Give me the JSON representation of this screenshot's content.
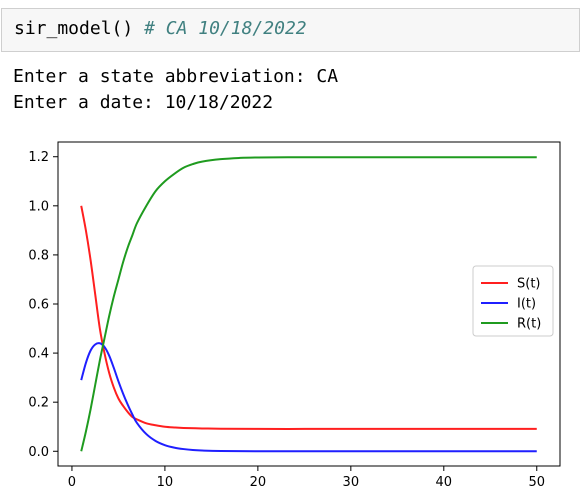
{
  "notebook": {
    "input_code": "sir_model()",
    "input_comment": "# CA 10/18/2022",
    "output_lines": [
      "Enter a state abbreviation: CA",
      "Enter a date: 10/18/2022"
    ]
  },
  "colors": {
    "S": "#ff1f1f",
    "I": "#1f1fff",
    "R": "#1f9b1f"
  },
  "chart_data": {
    "type": "line",
    "title": "",
    "xlabel": "",
    "ylabel": "",
    "xlim": [
      -1.5,
      52.5
    ],
    "ylim": [
      -0.06,
      1.26
    ],
    "xticks": [
      0,
      10,
      20,
      30,
      40,
      50
    ],
    "yticks": [
      0.0,
      0.2,
      0.4,
      0.6,
      0.8,
      1.0,
      1.2
    ],
    "ytick_labels": [
      "0.0",
      "0.2",
      "0.4",
      "0.6",
      "0.8",
      "1.0",
      "1.2"
    ],
    "grid": false,
    "legend": "center-right",
    "series": [
      {
        "name": "S(t)",
        "color": "#ff1f1f",
        "x": [
          1,
          1.5,
          2,
          2.5,
          3,
          3.5,
          4,
          4.5,
          5,
          5.5,
          6,
          6.5,
          7,
          8,
          9,
          10,
          11,
          12,
          14,
          16,
          20,
          25,
          30,
          40,
          50
        ],
        "y": [
          1.0,
          0.9,
          0.78,
          0.64,
          0.5,
          0.4,
          0.32,
          0.26,
          0.215,
          0.185,
          0.16,
          0.14,
          0.13,
          0.114,
          0.106,
          0.1,
          0.097,
          0.095,
          0.093,
          0.092,
          0.091,
          0.091,
          0.091,
          0.091,
          0.091
        ]
      },
      {
        "name": "I(t)",
        "color": "#1f1fff",
        "x": [
          1,
          1.5,
          2,
          2.5,
          3,
          3.5,
          4,
          4.5,
          5,
          5.5,
          6,
          6.5,
          7,
          8,
          9,
          10,
          11,
          12,
          13,
          14,
          16,
          20,
          25,
          30,
          40,
          50
        ],
        "y": [
          0.29,
          0.36,
          0.41,
          0.435,
          0.44,
          0.425,
          0.39,
          0.34,
          0.285,
          0.235,
          0.19,
          0.15,
          0.115,
          0.07,
          0.042,
          0.025,
          0.015,
          0.009,
          0.005,
          0.003,
          0.001,
          0.0,
          0.0,
          0.0,
          0.0,
          0.0
        ]
      },
      {
        "name": "R(t)",
        "color": "#1f9b1f",
        "x": [
          1,
          1.5,
          2,
          2.5,
          3,
          3.5,
          4,
          4.5,
          5,
          5.5,
          6,
          6.5,
          7,
          8,
          9,
          10,
          11,
          12,
          13,
          14,
          16,
          18,
          20,
          25,
          30,
          40,
          50
        ],
        "y": [
          0.0,
          0.08,
          0.17,
          0.27,
          0.37,
          0.46,
          0.55,
          0.63,
          0.7,
          0.77,
          0.83,
          0.88,
          0.93,
          1.0,
          1.06,
          1.1,
          1.13,
          1.155,
          1.17,
          1.18,
          1.19,
          1.195,
          1.197,
          1.198,
          1.198,
          1.198,
          1.198
        ]
      }
    ]
  }
}
